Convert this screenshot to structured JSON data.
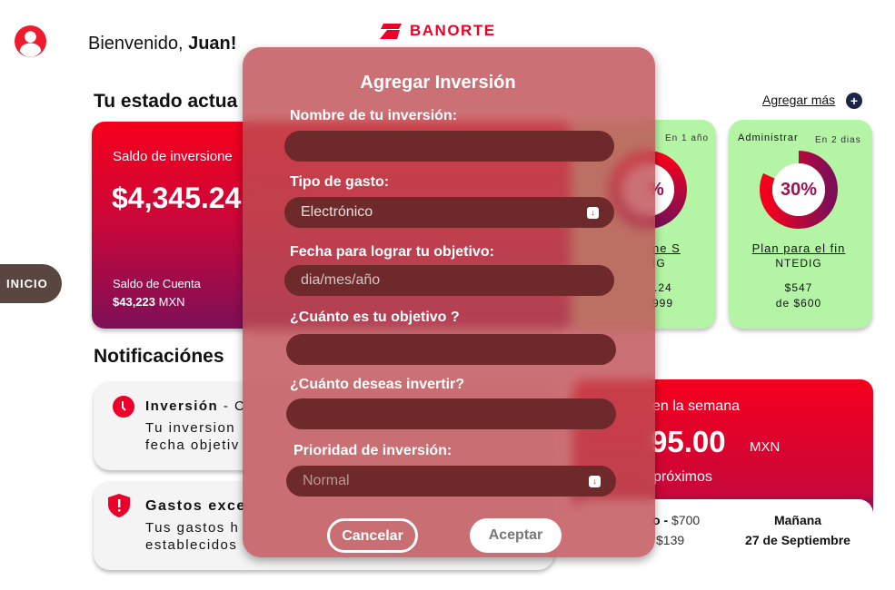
{
  "header": {
    "greeting": "Bienvenido, ",
    "user": "Juan!",
    "logo": "BANORTE",
    "avatar_icon": "user-circle-icon"
  },
  "nav": {
    "inicio": "INICIO"
  },
  "estado": {
    "title": "Tu estado actua",
    "add_more": "Agregar más",
    "add_icon": "plus-icon"
  },
  "balance_card": {
    "label": "Saldo de inversione",
    "amount": "$4,345.24",
    "account_label": "Saldo de Cuenta",
    "account_amount": "$43,223",
    "account_currency": " MXN"
  },
  "goals": [
    {
      "when": "En 1 año",
      "percent": "%",
      "name": "ne S",
      "code": "IG",
      "amount": ".24",
      "of": "999"
    },
    {
      "manage": "Administrar",
      "when": "En 2 dias",
      "percent": "30%",
      "progress": 0.3,
      "name": "Plan para el fin",
      "code": "NTEDIG",
      "amount": "$547",
      "of": "de $600"
    }
  ],
  "notifications": {
    "title": "Notificaciónes",
    "items": [
      {
        "icon": "clock-icon",
        "title": "Inversión",
        "sep": " - C",
        "line1": "Tu inversion",
        "line2": "fecha objetiv"
      },
      {
        "icon": "shield-alert-icon",
        "title": "Gastos exce",
        "line1": "Tus gastos h",
        "line2": "establecidos"
      }
    ]
  },
  "week": {
    "label": "en la semana",
    "amount": "95.00",
    "currency": "MXN",
    "sub": "próximos",
    "row1_left_bold": "o - ",
    "row1_left": "$700",
    "row2_left": "$139",
    "row1_right": "Mañana",
    "row2_right": "27 de Septiembre"
  },
  "modal": {
    "title": "Agregar Inversión",
    "name_label": "Nombre de tu inversión:",
    "name_value": "",
    "type_label": "Tipo de gasto:",
    "type_value": "Electrónico",
    "date_label": "Fecha para lograr tu objetivo:",
    "date_placeholder": "dia/mes/año",
    "goal_label": "¿Cuánto es tu objetivo ?",
    "goal_value": "",
    "invest_label": "¿Cuánto deseas invertir?",
    "invest_value": "",
    "priority_label": "Prioridad de inversión:",
    "priority_value": "Normal",
    "cancel": "Cancelar",
    "accept": "Aceptar"
  },
  "colors": {
    "brand_red": "#eb0029",
    "green_card": "#b4f5a5",
    "modal": "#be4e52"
  }
}
